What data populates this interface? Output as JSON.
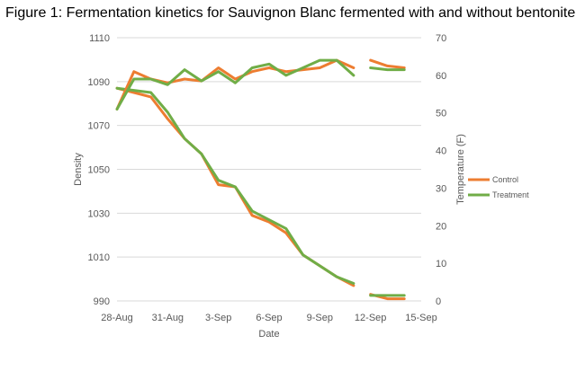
{
  "title": "Figure 1: Fermentation kinetics for Sauvignon Blanc fermented with and without bentonite",
  "colors": {
    "control": "#ED7D31",
    "treatment": "#70AD47",
    "grid": "#D9D9D9",
    "text": "#595959"
  },
  "chart_data": {
    "type": "line",
    "title": "Figure 1: Fermentation kinetics for Sauvignon Blanc fermented with and without bentonite",
    "xlabel": "Date",
    "ylabel": "Density",
    "y2label": "Temperature (F)",
    "x_tick_labels": [
      "28-Aug",
      "31-Aug",
      "3-Sep",
      "6-Sep",
      "9-Sep",
      "12-Sep",
      "15-Sep"
    ],
    "x_tick_days": [
      0,
      3,
      6,
      9,
      12,
      15,
      18
    ],
    "xlim_days": [
      0,
      18
    ],
    "ylim": [
      990,
      1110
    ],
    "y_ticks": [
      990,
      1010,
      1030,
      1050,
      1070,
      1090,
      1110
    ],
    "y2lim": [
      0,
      70
    ],
    "y2_ticks": [
      0,
      10,
      20,
      30,
      40,
      50,
      60,
      70
    ],
    "gridlines": "horizontal",
    "legend_position": "right",
    "series": [
      {
        "name": "Control",
        "measure": "density",
        "axis": "left",
        "color_key": "control",
        "segments": [
          {
            "x": [
              0,
              1,
              2,
              3,
              4,
              5,
              6,
              7,
              8,
              9,
              10,
              11,
              12,
              13,
              14,
              15,
              16
            ],
            "y": [
              1087,
              1085,
              1083,
              1073,
              1064,
              1057,
              1043,
              1042,
              1029,
              1026,
              1021,
              1011,
              1006,
              1001,
              997,
              null,
              null
            ]
          },
          {
            "x": [
              15,
              16,
              17
            ],
            "y": [
              993,
              991,
              991
            ]
          }
        ]
      },
      {
        "name": "Treatment",
        "measure": "density",
        "axis": "left",
        "color_key": "treatment",
        "segments": [
          {
            "x": [
              0,
              1,
              2,
              3,
              4,
              5,
              6,
              7,
              8,
              9,
              10,
              11,
              12,
              13,
              14
            ],
            "y": [
              1087,
              1086,
              1085,
              1076,
              1064,
              1057,
              1045,
              1042,
              1031,
              1027,
              1023,
              1011,
              1006,
              1001,
              998
            ]
          },
          {
            "x": [
              15,
              16,
              17
            ],
            "y": [
              992.5,
              992.5,
              992.5
            ]
          }
        ]
      },
      {
        "name": "Control",
        "measure": "temperature",
        "axis": "right",
        "color_key": "control",
        "segments": [
          {
            "x": [
              0,
              1,
              2,
              3,
              4,
              5,
              6,
              7,
              8,
              9,
              10,
              11,
              12,
              13,
              14
            ],
            "y": [
              51,
              61,
              59,
              58,
              59,
              58.5,
              62,
              59,
              61,
              62,
              61,
              61.5,
              62,
              64,
              62
            ]
          },
          {
            "x": [
              15,
              16,
              17
            ],
            "y": [
              64,
              62.5,
              62
            ]
          }
        ]
      },
      {
        "name": "Treatment",
        "measure": "temperature",
        "axis": "right",
        "color_key": "treatment",
        "segments": [
          {
            "x": [
              0,
              1,
              2,
              3,
              4,
              5,
              6,
              7,
              8,
              9,
              10,
              11,
              12,
              13,
              14
            ],
            "y": [
              51,
              59,
              59,
              57.5,
              61.5,
              58.5,
              61,
              58,
              62,
              63,
              60,
              62,
              64,
              64,
              60
            ]
          },
          {
            "x": [
              15,
              16,
              17
            ],
            "y": [
              62,
              61.5,
              61.5
            ]
          }
        ]
      }
    ],
    "legend": [
      {
        "label": "Control",
        "color_key": "control"
      },
      {
        "label": "Treatment",
        "color_key": "treatment"
      }
    ]
  }
}
